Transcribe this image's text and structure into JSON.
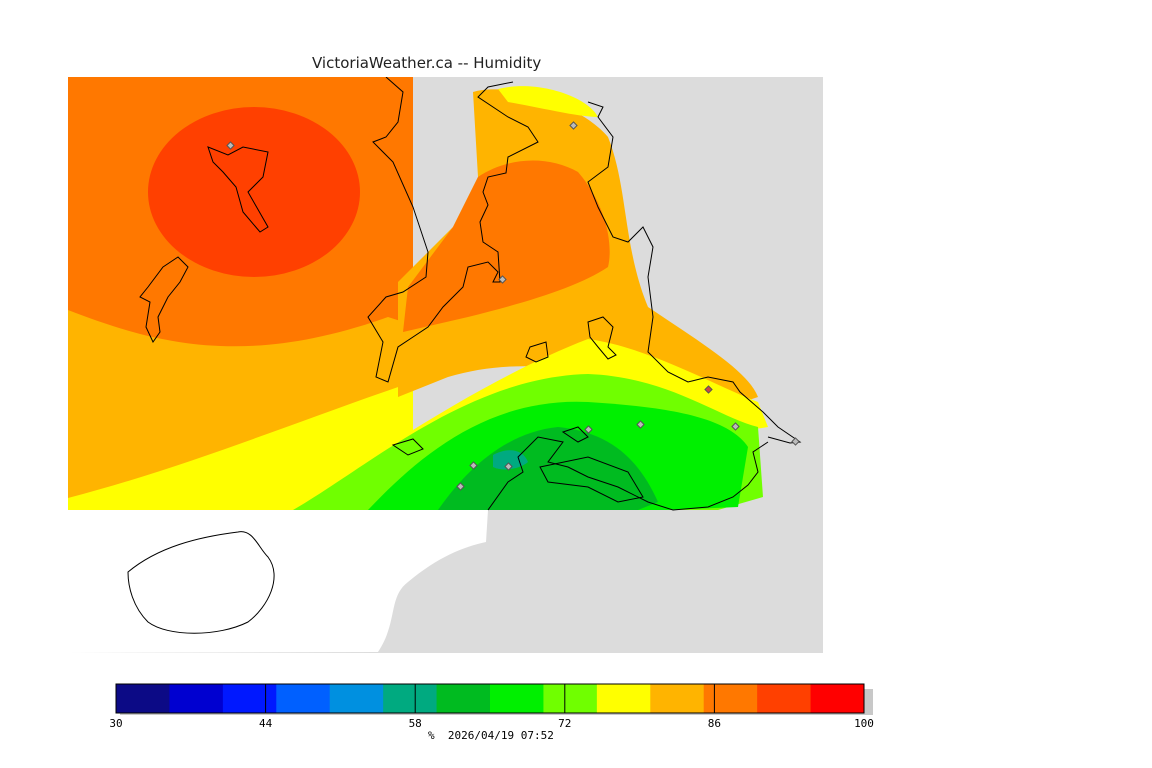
{
  "title": "VictoriaWeather.ca -- Humidity",
  "legend": {
    "colors": [
      "#0c0a86",
      "#0000d0",
      "#0018ff",
      "#0060ff",
      "#0090e0",
      "#00aa80",
      "#00bb20",
      "#00f000",
      "#70ff00",
      "#ffff00",
      "#ffb400",
      "#ff7800",
      "#ff4000",
      "#ff0000"
    ],
    "min": 30,
    "max": 100,
    "ticks": [
      "30",
      "44",
      "58",
      "72",
      "86",
      "100"
    ],
    "tick_values": [
      30,
      44,
      58,
      72,
      86,
      100
    ]
  },
  "footer": {
    "unit": "%",
    "timestamp": "2026/04/19 07:52"
  },
  "colors": {
    "land_gray": "#dcdcdc",
    "no_data": "#ffffff",
    "coastline": "#000000"
  }
}
